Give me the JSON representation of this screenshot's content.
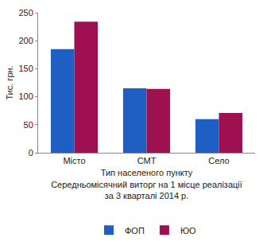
{
  "chart_data": {
    "type": "bar",
    "title": [
      "Середньомісячний виторг на 1 місце реалізації",
      "за 3 кварталі 2014 р."
    ],
    "xlabel": "Тип населеного пункту",
    "ylabel": "Тис. грн.",
    "categories": [
      "Місто",
      "СМТ",
      "Село"
    ],
    "series": [
      {
        "name": "ФОП",
        "color": "#1f5fc4",
        "values": [
          185,
          115,
          60
        ]
      },
      {
        "name": "ЮО",
        "color": "#9e1050",
        "values": [
          234,
          114,
          71
        ]
      }
    ],
    "ylim": [
      0,
      250
    ],
    "yticks": [
      0,
      50,
      100,
      150,
      200,
      250
    ],
    "grid": false,
    "legend": "bottom",
    "data_labels": false
  }
}
